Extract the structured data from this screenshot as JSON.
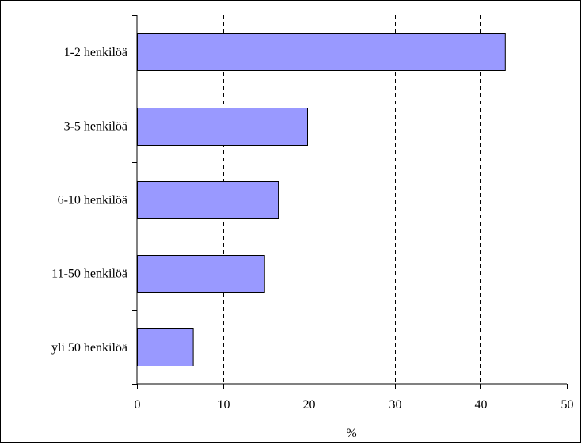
{
  "chart_data": {
    "type": "bar",
    "orientation": "horizontal",
    "categories": [
      "1-2 henkilöä",
      "3-5 henkilöä",
      "6-10 henkilöä",
      "11-50 henkilöä",
      "yli 50 henkilöä"
    ],
    "values": [
      42.8,
      19.8,
      16.4,
      14.8,
      6.5
    ],
    "xlabel": "%",
    "ylabel": "",
    "xlim": [
      0,
      50
    ],
    "xticks": [
      "0",
      "10",
      "20",
      "30",
      "40",
      "50"
    ],
    "grid": "vertical dashed",
    "legend": "none",
    "bar_color": "#9999ff",
    "bar_edge_color": "#000000"
  }
}
